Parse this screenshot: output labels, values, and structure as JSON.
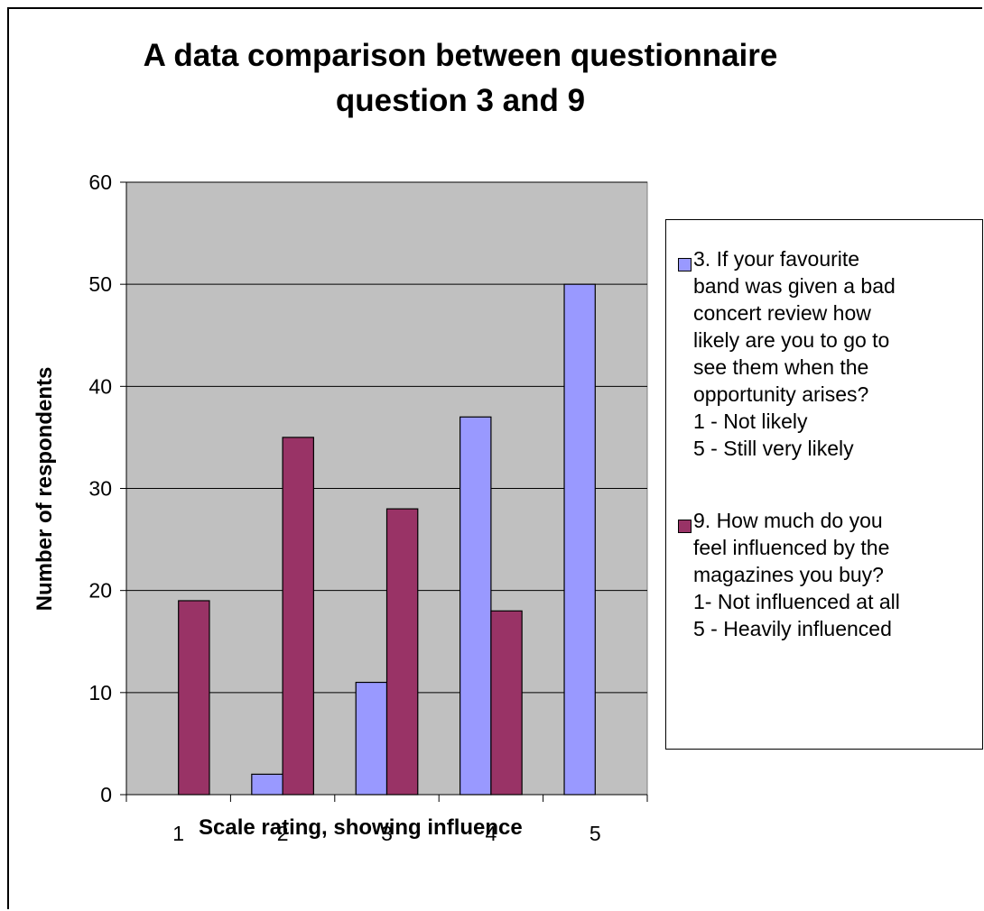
{
  "chart_data": {
    "type": "bar",
    "title": [
      "A data comparison between questionnaire",
      "question  3 and 9"
    ],
    "xlabel": "Scale rating, showing influence",
    "ylabel": "Number of respondents",
    "categories": [
      "1",
      "2",
      "3",
      "4",
      "5"
    ],
    "ylim": [
      0,
      60
    ],
    "yticks": [
      "0",
      "10",
      "20",
      "30",
      "40",
      "50",
      "60"
    ],
    "grid": true,
    "plot_background": "#c0c0c0",
    "legend_position": "right",
    "series": [
      {
        "name": [
          "3. If your favourite",
          "band was given a bad",
          "concert review how",
          "likely are you to go to",
          "see them when the",
          "opportunity arises?",
          "1 - Not likely",
          "5 - Still very likely"
        ],
        "color": "#9999ff",
        "values": [
          0,
          2,
          11,
          37,
          50
        ]
      },
      {
        "name": [
          "9. How much do you",
          "feel influenced by the",
          "magazines you buy?",
          "1- Not influenced at all",
          "5 - Heavily influenced"
        ],
        "color": "#993366",
        "values": [
          19,
          35,
          28,
          18,
          0
        ]
      }
    ]
  }
}
